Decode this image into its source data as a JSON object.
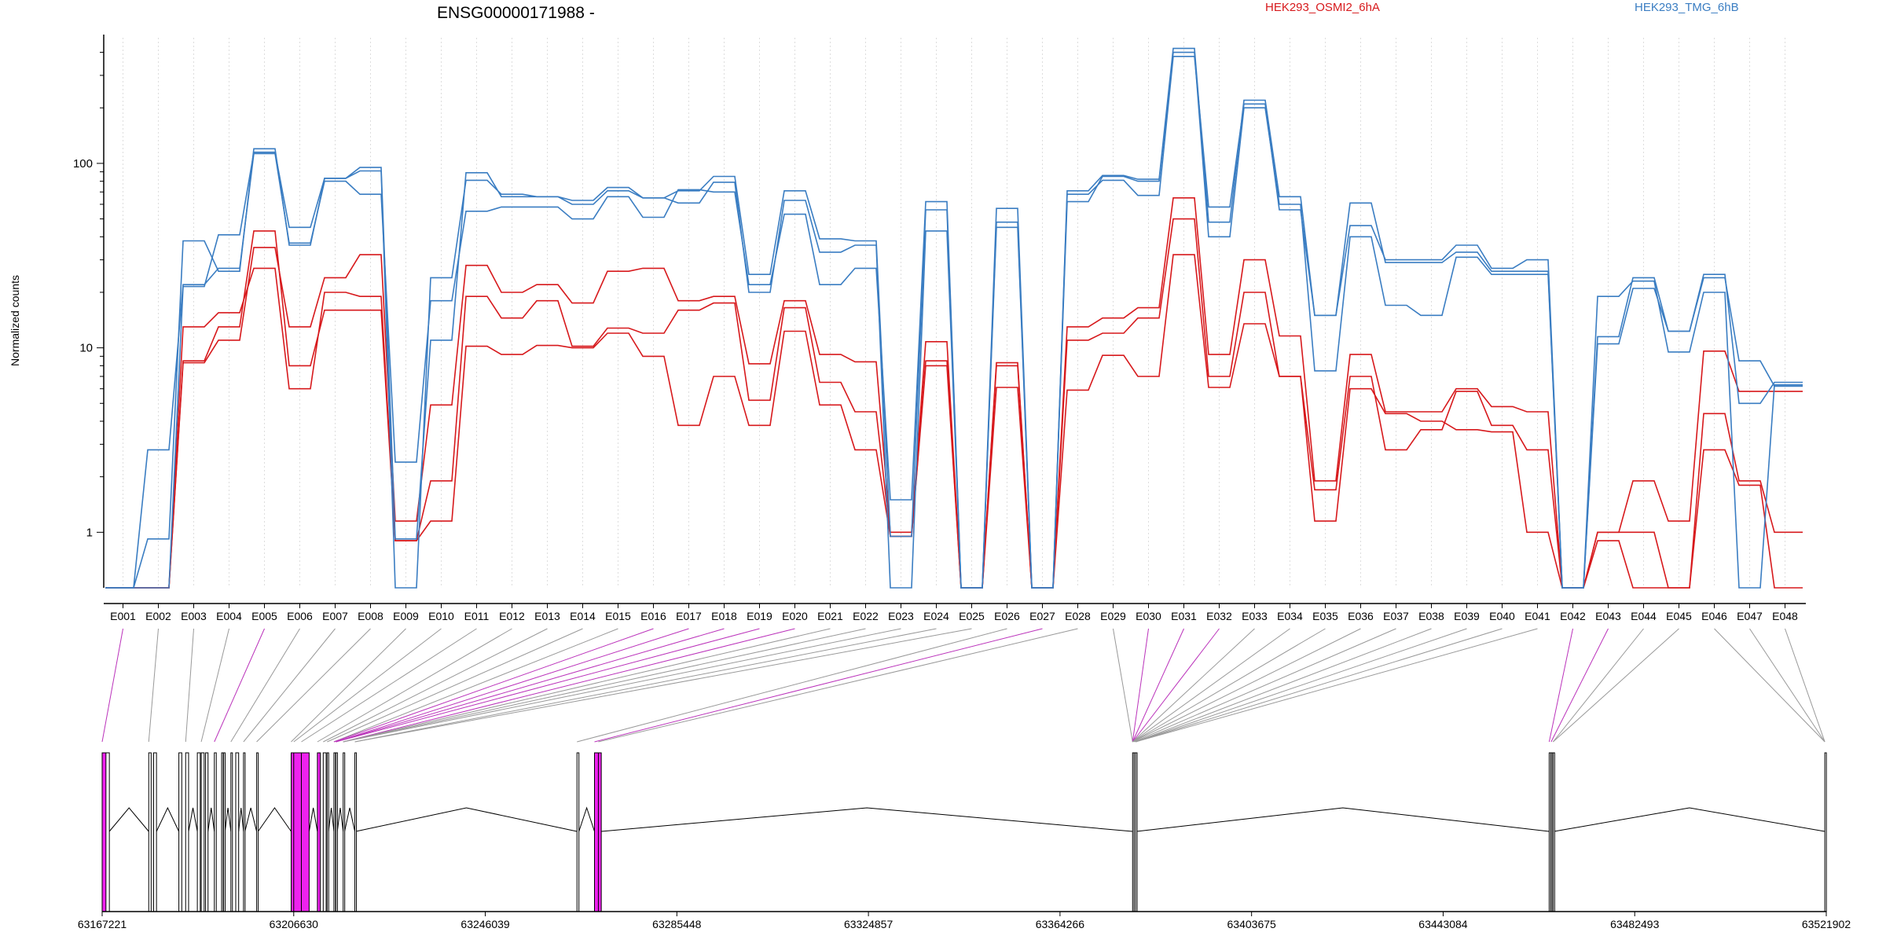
{
  "chart_data": {
    "type": "line",
    "title": "ENSG00000171988 -",
    "ylabel": "Normalized counts",
    "yscale": "log",
    "ylim": [
      0.5,
      480
    ],
    "yticks": [
      1,
      10,
      100
    ],
    "ytick_labels": [
      "1",
      "10",
      "100"
    ],
    "zero_floor": 0.5,
    "grid": "vertical dotted lines at each exon",
    "legend": [
      {
        "name": "HEK293_OSMI2_6hA",
        "color": "#d7191c",
        "placement": "top-center"
      },
      {
        "name": "HEK293_TMG_6hB",
        "color": "#3a7dc2",
        "placement": "top-right"
      }
    ],
    "colors": {
      "red": "#d7191c",
      "blue": "#3a7dc2",
      "exon_highlight": "#ee22ee",
      "exon_normal": "#ffffff"
    },
    "categories": [
      "E001",
      "E002",
      "E003",
      "E004",
      "E005",
      "E006",
      "E007",
      "E008",
      "E009",
      "E010",
      "E011",
      "E012",
      "E013",
      "E014",
      "E015",
      "E016",
      "E017",
      "E018",
      "E019",
      "E020",
      "E021",
      "E022",
      "E023",
      "E024",
      "E025",
      "E026",
      "E027",
      "E028",
      "E029",
      "E030",
      "E031",
      "E032",
      "E033",
      "E034",
      "E035",
      "E036",
      "E037",
      "E038",
      "E039",
      "E040",
      "E041",
      "E042",
      "E043",
      "E044",
      "E045",
      "E046",
      "E047",
      "E048"
    ],
    "series": [
      {
        "group": "red",
        "values": [
          0,
          0,
          8.3,
          11,
          35,
          13,
          24,
          32,
          1.15,
          4.9,
          28,
          20,
          22,
          17.5,
          26,
          27,
          18,
          19,
          8.2,
          18,
          9.2,
          8.4,
          1.0,
          10.8,
          0,
          8.3,
          0,
          13,
          14.5,
          16.5,
          65,
          9.2,
          30,
          11.6,
          1.9,
          9.2,
          4.5,
          4.5,
          6,
          4.8,
          4.5,
          0,
          1,
          1.9,
          1.15,
          9.6,
          5.8,
          5.8
        ]
      },
      {
        "group": "red",
        "values": [
          0,
          0,
          13,
          15.5,
          27,
          6,
          20,
          19,
          0.9,
          1.9,
          19,
          14.5,
          18,
          10.2,
          12.8,
          12,
          16,
          17.5,
          5.2,
          16.5,
          6.5,
          4.5,
          0.95,
          8.5,
          0,
          6.1,
          0,
          11,
          12,
          14.5,
          50,
          7,
          20,
          7,
          1.7,
          7,
          2.8,
          3.6,
          5.8,
          3.8,
          2.8,
          0,
          0.9,
          0,
          0,
          4.4,
          1.9,
          1
        ]
      },
      {
        "group": "red",
        "values": [
          0,
          0,
          8.5,
          13,
          43,
          8,
          16,
          16,
          0.9,
          1.15,
          10.2,
          9.2,
          10.3,
          10,
          12,
          9,
          3.8,
          7,
          3.8,
          12.3,
          4.9,
          2.8,
          0.95,
          8,
          0,
          8,
          0,
          5.9,
          9.1,
          7,
          32,
          6.1,
          13.5,
          7,
          1.15,
          6,
          4.4,
          4,
          3.6,
          3.5,
          1,
          0,
          1,
          1,
          0,
          2.8,
          1.8,
          0
        ]
      },
      {
        "group": "blue",
        "values": [
          0,
          2.8,
          22,
          27,
          113,
          37,
          80,
          68,
          2.4,
          18,
          55,
          58,
          58,
          50,
          66,
          51,
          72,
          70,
          22,
          53,
          22,
          27,
          1.5,
          62,
          0,
          57,
          0,
          62,
          85,
          80,
          400,
          40,
          200,
          60,
          7.5,
          40,
          17,
          15,
          31,
          25,
          25,
          0,
          10.5,
          21,
          12.3,
          24,
          8.5,
          6.2
        ]
      },
      {
        "group": "blue",
        "values": [
          0,
          0.92,
          38,
          26,
          120,
          36,
          83,
          95,
          0.92,
          11,
          89,
          66,
          66,
          63,
          74,
          65,
          71,
          85,
          25,
          71,
          39,
          38,
          0.95,
          56,
          0,
          48,
          0,
          71,
          86,
          82,
          420,
          48,
          220,
          66,
          15,
          46,
          30,
          30,
          36,
          27,
          30,
          0,
          11.5,
          24,
          12.3,
          25,
          5,
          6.5
        ]
      },
      {
        "group": "blue",
        "values": [
          0,
          0,
          21.5,
          41,
          115,
          45,
          83,
          91,
          0,
          24,
          81,
          68,
          66,
          60,
          71,
          65,
          61,
          79,
          20,
          63,
          33,
          36,
          0,
          43,
          0,
          45,
          0,
          68,
          81,
          67,
          380,
          58,
          210,
          56,
          15,
          61,
          29,
          29,
          33,
          26,
          26,
          0,
          19,
          23,
          9.5,
          20,
          0,
          6.3
        ]
      }
    ],
    "exon_highlighted": [
      true,
      false,
      false,
      false,
      true,
      false,
      false,
      false,
      false,
      false,
      false,
      false,
      false,
      false,
      false,
      true,
      true,
      true,
      true,
      true,
      false,
      false,
      false,
      false,
      false,
      false,
      true,
      false,
      false,
      true,
      true,
      true,
      false,
      false,
      false,
      false,
      false,
      false,
      false,
      false,
      false,
      true,
      true,
      false,
      false,
      false,
      false,
      false
    ],
    "genomic_axis": {
      "range": [
        63167221,
        63521902
      ],
      "tick_labels": [
        "63167221",
        "63206630",
        "63246039",
        "63285448",
        "63324857",
        "63364266",
        "63403675",
        "63443084",
        "63482493",
        "63521902"
      ]
    },
    "gene_model": {
      "exon_starts": [
        63167221,
        63168000,
        63176800,
        63177800,
        63183000,
        63184400,
        63186800,
        63187600,
        63188500,
        63190300,
        63191800,
        63192200,
        63193700,
        63194700,
        63196300,
        63199000,
        63206100,
        63206630,
        63208200,
        63211500,
        63212700,
        63213500,
        63214900,
        63215300,
        63216800,
        63219200,
        63264900,
        63268500,
        63269300,
        63379200,
        63379500,
        63379800,
        63464900,
        63465300,
        63465700,
        63521600
      ],
      "exon_ends": [
        63168200,
        63168700,
        63177300,
        63178400,
        63183600,
        63185000,
        63187400,
        63188200,
        63189000,
        63190700,
        63192000,
        63192500,
        63194000,
        63195300,
        63196600,
        63199300,
        63208200,
        63209000,
        63209800,
        63212100,
        63213300,
        63213800,
        63215200,
        63215600,
        63217100,
        63219400,
        63265300,
        63269600,
        63269900,
        63379400,
        63379700,
        63380000,
        63465100,
        63465500,
        63465900,
        63521902
      ],
      "highlight": [
        true,
        false,
        false,
        false,
        false,
        false,
        false,
        false,
        false,
        false,
        false,
        false,
        false,
        false,
        false,
        false,
        true,
        true,
        true,
        true,
        false,
        false,
        false,
        false,
        false,
        false,
        false,
        true,
        true,
        false,
        false,
        false,
        false,
        false,
        false,
        false
      ],
      "exon_map": [
        0,
        2,
        5,
        7,
        9,
        12,
        14,
        15,
        16,
        17,
        18,
        19,
        20,
        21,
        22,
        22,
        23,
        23,
        23,
        24,
        24,
        24,
        24,
        25,
        25,
        26,
        27,
        28,
        29,
        29,
        29,
        29,
        29,
        29,
        29,
        29,
        30,
        31,
        31,
        31,
        31,
        32,
        33,
        34,
        34,
        35,
        35,
        35
      ],
      "introns": [
        [
          63168700,
          63176800
        ],
        [
          63178400,
          63183000
        ],
        [
          63185000,
          63186800
        ],
        [
          63189000,
          63190300
        ],
        [
          63192500,
          63193700
        ],
        [
          63195300,
          63196300
        ],
        [
          63196600,
          63199000
        ],
        [
          63199300,
          63206100
        ],
        [
          63209800,
          63211500
        ],
        [
          63213800,
          63214900
        ],
        [
          63215600,
          63216800
        ],
        [
          63217100,
          63219200
        ],
        [
          63219400,
          63264900
        ],
        [
          63265300,
          63268500
        ],
        [
          63269900,
          63379200
        ],
        [
          63380000,
          63464900
        ],
        [
          63465900,
          63521600
        ]
      ]
    }
  }
}
